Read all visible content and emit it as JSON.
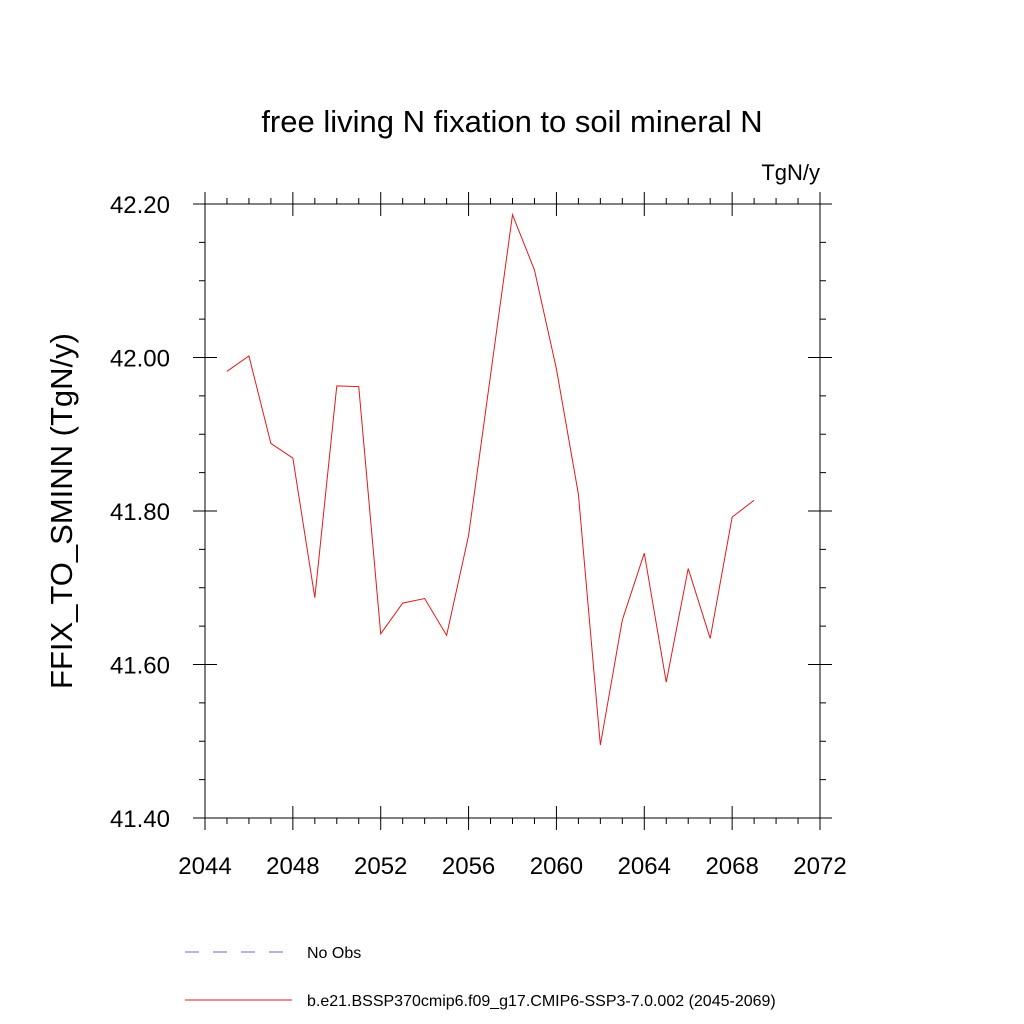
{
  "chart_data": {
    "type": "line",
    "title": "free living N fixation to soil mineral N",
    "units": "TgN/y",
    "xlabel": "",
    "ylabel": "FFIX_TO_SMINN  (TgN/y)",
    "xlim": [
      2044,
      2072
    ],
    "ylim": [
      41.4,
      42.2
    ],
    "x_ticks": [
      2044,
      2048,
      2052,
      2056,
      2060,
      2064,
      2068,
      2072
    ],
    "x_tick_labels": [
      "2044",
      "2048",
      "2052",
      "2056",
      "2060",
      "2064",
      "2068",
      "2072"
    ],
    "y_ticks": [
      41.4,
      41.6,
      41.8,
      42.0,
      42.2
    ],
    "y_tick_labels": [
      "41.40",
      "41.60",
      "41.80",
      "42.00",
      "42.20"
    ],
    "y_minor_step": 0.05,
    "x_minor_step": 1,
    "grid": false,
    "series": [
      {
        "name": "b.e21.BSSP370cmip6.f09_g17.CMIP6-SSP3-7.0.002 (2045-2069)",
        "color": "#e31a1c",
        "x": [
          2045,
          2046,
          2047,
          2048,
          2049,
          2050,
          2051,
          2052,
          2053,
          2054,
          2055,
          2056,
          2057,
          2058,
          2059,
          2060,
          2061,
          2062,
          2063,
          2064,
          2065,
          2066,
          2067,
          2068,
          2069
        ],
        "values": [
          41.982,
          42.002,
          41.888,
          41.869,
          41.687,
          41.963,
          41.962,
          41.64,
          41.68,
          41.686,
          41.638,
          41.768,
          41.977,
          42.186,
          42.114,
          41.985,
          41.822,
          41.495,
          41.658,
          41.745,
          41.577,
          41.725,
          41.634,
          41.792,
          41.814
        ]
      }
    ],
    "legend": [
      {
        "label": "No Obs",
        "style": "dashed",
        "color": "#6a6acd"
      },
      {
        "label": "b.e21.BSSP370cmip6.f09_g17.CMIP6-SSP3-7.0.002 (2045-2069)",
        "style": "solid",
        "color": "#e31a1c"
      }
    ]
  }
}
